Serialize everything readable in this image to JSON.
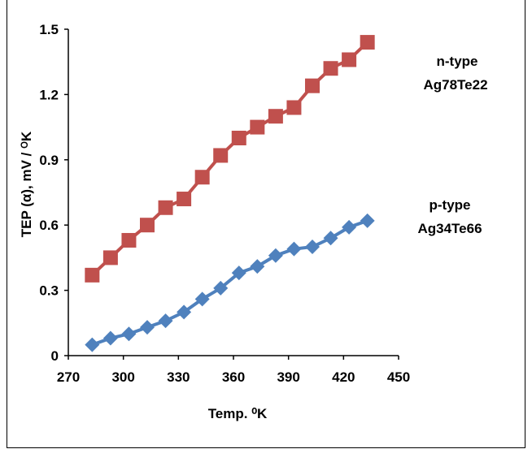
{
  "chart_data": {
    "type": "line",
    "title": "",
    "xlabel": "Temp. ⁰K",
    "ylabel": "TEP (α), mV / ᴼK",
    "xlim": [
      270,
      450
    ],
    "ylim": [
      0,
      1.5
    ],
    "xticks": [
      270,
      300,
      330,
      360,
      390,
      420,
      450
    ],
    "yticks": [
      0,
      0.3,
      0.6,
      0.9,
      1.2,
      1.5
    ],
    "ytick_labels": [
      "0",
      "0.3",
      "0.6",
      "0.9",
      "1.2",
      "1.5"
    ],
    "grid": false,
    "legend": "none",
    "series": [
      {
        "type_label": "n-type",
        "material_label": "Ag78Te22",
        "color": "#c0504d",
        "marker": "square",
        "x": [
          283,
          293,
          303,
          313,
          323,
          333,
          343,
          353,
          363,
          373,
          383,
          393,
          403,
          413,
          423,
          433
        ],
        "y": [
          0.37,
          0.45,
          0.53,
          0.6,
          0.68,
          0.72,
          0.82,
          0.92,
          1.0,
          1.05,
          1.1,
          1.14,
          1.24,
          1.32,
          1.36,
          1.44
        ]
      },
      {
        "type_label": "p-type",
        "material_label": "Ag34Te66",
        "color": "#4f81bd",
        "marker": "diamond",
        "x": [
          283,
          293,
          303,
          313,
          323,
          333,
          343,
          353,
          363,
          373,
          383,
          393,
          403,
          413,
          423,
          433
        ],
        "y": [
          0.05,
          0.08,
          0.1,
          0.13,
          0.16,
          0.2,
          0.26,
          0.31,
          0.38,
          0.41,
          0.46,
          0.49,
          0.5,
          0.54,
          0.59,
          0.62
        ]
      }
    ]
  }
}
